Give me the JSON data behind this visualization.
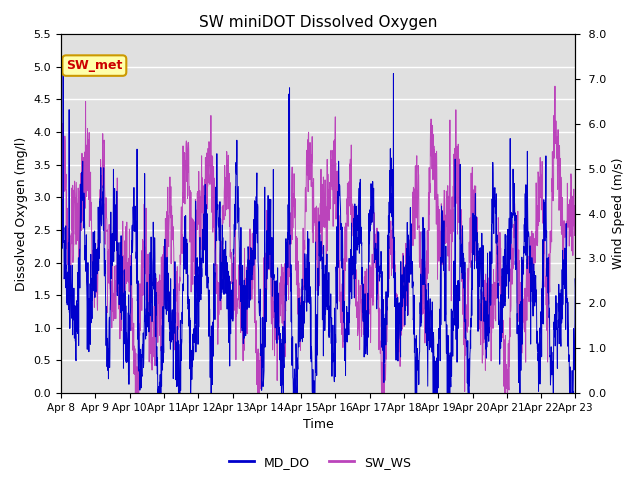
{
  "title": "SW miniDOT Dissolved Oxygen",
  "xlabel": "Time",
  "ylabel_left": "Dissolved Oxygen (mg/l)",
  "ylabel_right": "Wind Speed (m/s)",
  "ylim_left": [
    0.0,
    5.5
  ],
  "ylim_right": [
    0.0,
    8.0
  ],
  "yticks_left": [
    0.0,
    0.5,
    1.0,
    1.5,
    2.0,
    2.5,
    3.0,
    3.5,
    4.0,
    4.5,
    5.0,
    5.5
  ],
  "yticks_right": [
    0.0,
    1.0,
    2.0,
    3.0,
    4.0,
    5.0,
    6.0,
    7.0,
    8.0
  ],
  "xtick_labels": [
    "Apr 8",
    "Apr 9",
    "Apr 10",
    "Apr 11",
    "Apr 12",
    "Apr 13",
    "Apr 14",
    "Apr 15",
    "Apr 16",
    "Apr 17",
    "Apr 18",
    "Apr 19",
    "Apr 20",
    "Apr 21",
    "Apr 22",
    "Apr 23"
  ],
  "color_DO": "#0000cc",
  "color_WS": "#bb44bb",
  "label_DO": "MD_DO",
  "label_WS": "SW_WS",
  "annotation_text": "SW_met",
  "annotation_color": "#cc0000",
  "annotation_bg": "#ffffaa",
  "annotation_border": "#cc9900",
  "background_gray": "#e0e0e0",
  "seed": 42,
  "n_points": 2160
}
